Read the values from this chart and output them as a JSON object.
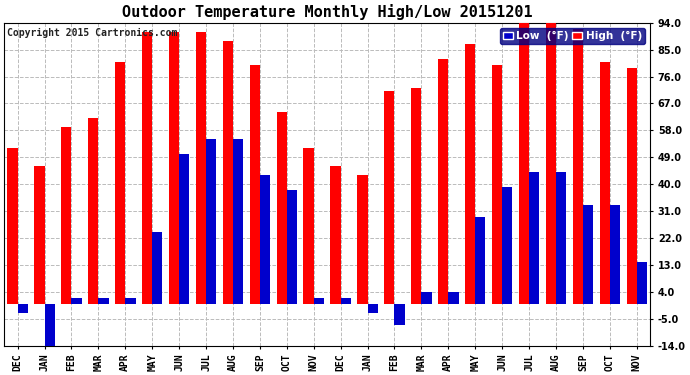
{
  "title": "Outdoor Temperature Monthly High/Low 20151201",
  "copyright": "Copyright 2015 Cartronics.com",
  "categories": [
    "DEC",
    "JAN",
    "FEB",
    "MAR",
    "APR",
    "MAY",
    "JUN",
    "JUL",
    "AUG",
    "SEP",
    "OCT",
    "NOV",
    "DEC",
    "JAN",
    "FEB",
    "MAR",
    "APR",
    "MAY",
    "JUN",
    "JUL",
    "AUG",
    "SEP",
    "OCT",
    "NOV"
  ],
  "high_values": [
    52,
    46,
    59,
    62,
    81,
    91,
    91,
    91,
    88,
    80,
    64,
    52,
    46,
    43,
    71,
    72,
    82,
    87,
    80,
    96,
    95,
    92,
    81,
    79
  ],
  "low_values": [
    -3,
    -14,
    2,
    2,
    2,
    24,
    50,
    55,
    55,
    43,
    38,
    2,
    2,
    -3,
    -7,
    4,
    4,
    29,
    39,
    44,
    44,
    33,
    33,
    14
  ],
  "bar_width": 0.38,
  "high_color": "#FF0000",
  "low_color": "#0000CC",
  "background_color": "#FFFFFF",
  "grid_color": "#BBBBBB",
  "ylim_min": -14,
  "ylim_max": 94,
  "yticks": [
    -14.0,
    -5.0,
    4.0,
    13.0,
    22.0,
    31.0,
    40.0,
    49.0,
    58.0,
    67.0,
    76.0,
    85.0,
    94.0
  ],
  "legend_low_label": "Low  (°F)",
  "legend_high_label": "High  (°F)",
  "title_fontsize": 11,
  "tick_fontsize": 7,
  "copyright_fontsize": 7
}
